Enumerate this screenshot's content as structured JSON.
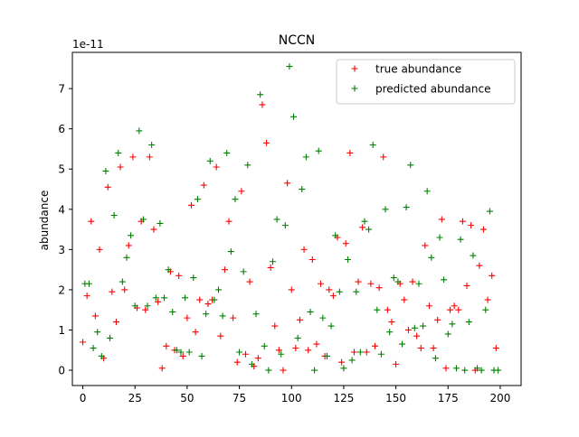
{
  "chart_data": {
    "type": "scatter",
    "title": "NCCN",
    "ylabel": "abundance",
    "xlabel": "",
    "y_offset_label": "1e-11",
    "y_scale_factor": 1e-11,
    "xlim": [
      -5,
      210
    ],
    "ylim": [
      -0.38,
      7.9
    ],
    "x_ticks": [
      0,
      25,
      50,
      75,
      100,
      125,
      150,
      175,
      200
    ],
    "y_ticks": [
      0,
      1,
      2,
      3,
      4,
      5,
      6,
      7
    ],
    "grid": false,
    "legend_position": "top-right",
    "marker": "+",
    "series": [
      {
        "name": "true abundance",
        "color": "#ff0000",
        "x": [
          0,
          2,
          4,
          6,
          8,
          10,
          12,
          14,
          16,
          18,
          20,
          22,
          24,
          26,
          28,
          30,
          32,
          34,
          36,
          38,
          40,
          42,
          44,
          46,
          48,
          50,
          52,
          54,
          56,
          58,
          60,
          62,
          64,
          66,
          68,
          70,
          72,
          74,
          76,
          78,
          80,
          82,
          84,
          86,
          88,
          90,
          92,
          94,
          96,
          98,
          100,
          102,
          104,
          106,
          108,
          110,
          112,
          114,
          116,
          118,
          120,
          122,
          124,
          126,
          128,
          130,
          132,
          134,
          136,
          138,
          140,
          142,
          144,
          146,
          148,
          150,
          152,
          154,
          156,
          158,
          160,
          162,
          164,
          166,
          168,
          170,
          172,
          174,
          176,
          178,
          180,
          182,
          184,
          186,
          188,
          190,
          192,
          194,
          196,
          198
        ],
        "values": [
          0.7,
          1.85,
          3.7,
          1.35,
          3.0,
          0.3,
          4.55,
          1.95,
          1.2,
          5.05,
          2.0,
          3.1,
          5.3,
          1.55,
          3.7,
          1.5,
          5.3,
          3.5,
          1.7,
          0.05,
          0.6,
          2.45,
          0.5,
          2.35,
          0.35,
          1.3,
          4.1,
          0.95,
          1.75,
          4.6,
          1.65,
          1.75,
          5.05,
          0.85,
          2.5,
          3.7,
          1.3,
          0.2,
          4.45,
          0.4,
          2.2,
          0.1,
          0.3,
          6.6,
          5.65,
          2.55,
          1.1,
          0.5,
          0.0,
          4.65,
          2.0,
          0.55,
          1.25,
          3.0,
          0.5,
          2.75,
          0.65,
          2.15,
          0.35,
          2.0,
          1.85,
          3.3,
          0.2,
          3.15,
          5.4,
          0.45,
          2.2,
          3.55,
          0.45,
          2.15,
          0.6,
          2.05,
          5.3,
          1.5,
          1.2,
          0.15,
          2.15,
          1.75,
          1.0,
          2.2,
          0.85,
          0.55,
          3.1,
          1.6,
          0.55,
          1.25,
          3.75,
          0.05,
          1.5,
          1.6,
          1.5,
          3.7,
          2.1,
          3.6,
          0.0,
          2.6,
          3.5,
          1.75,
          2.35,
          0.55
        ],
        "color_note": ""
      },
      {
        "name": "predicted abundance",
        "color": "#008000",
        "x": [
          1,
          3,
          5,
          7,
          9,
          11,
          13,
          15,
          17,
          19,
          21,
          23,
          25,
          27,
          29,
          31,
          33,
          35,
          37,
          39,
          41,
          43,
          45,
          47,
          49,
          51,
          53,
          55,
          57,
          59,
          61,
          63,
          65,
          67,
          69,
          71,
          73,
          75,
          77,
          79,
          81,
          83,
          85,
          87,
          89,
          91,
          93,
          95,
          97,
          99,
          101,
          103,
          105,
          107,
          109,
          111,
          113,
          115,
          117,
          119,
          121,
          123,
          125,
          127,
          129,
          131,
          133,
          135,
          137,
          139,
          141,
          143,
          145,
          147,
          149,
          151,
          153,
          155,
          157,
          159,
          161,
          163,
          165,
          167,
          169,
          171,
          173,
          175,
          177,
          179,
          181,
          183,
          185,
          187,
          189,
          191,
          193,
          195,
          197,
          199
        ],
        "values": [
          2.15,
          2.15,
          0.55,
          0.95,
          0.35,
          4.95,
          0.8,
          3.85,
          5.4,
          2.2,
          2.8,
          3.35,
          1.6,
          5.95,
          3.75,
          1.6,
          5.6,
          1.8,
          3.65,
          1.8,
          2.5,
          1.45,
          0.5,
          0.45,
          1.8,
          0.45,
          2.3,
          4.25,
          0.35,
          1.4,
          5.2,
          1.75,
          2.0,
          1.35,
          5.4,
          2.95,
          4.25,
          0.45,
          2.45,
          5.1,
          0.15,
          1.4,
          6.85,
          0.6,
          0.0,
          2.7,
          3.75,
          0.4,
          3.6,
          7.55,
          6.3,
          0.8,
          4.5,
          5.3,
          1.45,
          0.0,
          5.45,
          1.3,
          0.35,
          1.1,
          3.35,
          1.95,
          0.05,
          2.75,
          0.25,
          1.95,
          0.45,
          3.7,
          3.5,
          5.6,
          1.5,
          0.4,
          4.0,
          0.95,
          2.3,
          2.2,
          0.65,
          4.05,
          5.1,
          1.05,
          2.15,
          1.1,
          4.45,
          2.8,
          0.3,
          3.3,
          2.25,
          0.9,
          1.15,
          0.05,
          3.25,
          0.0,
          1.2,
          2.85,
          0.05,
          0.0,
          1.5,
          3.95,
          0.0,
          0.0
        ],
        "color_note": ""
      }
    ]
  }
}
